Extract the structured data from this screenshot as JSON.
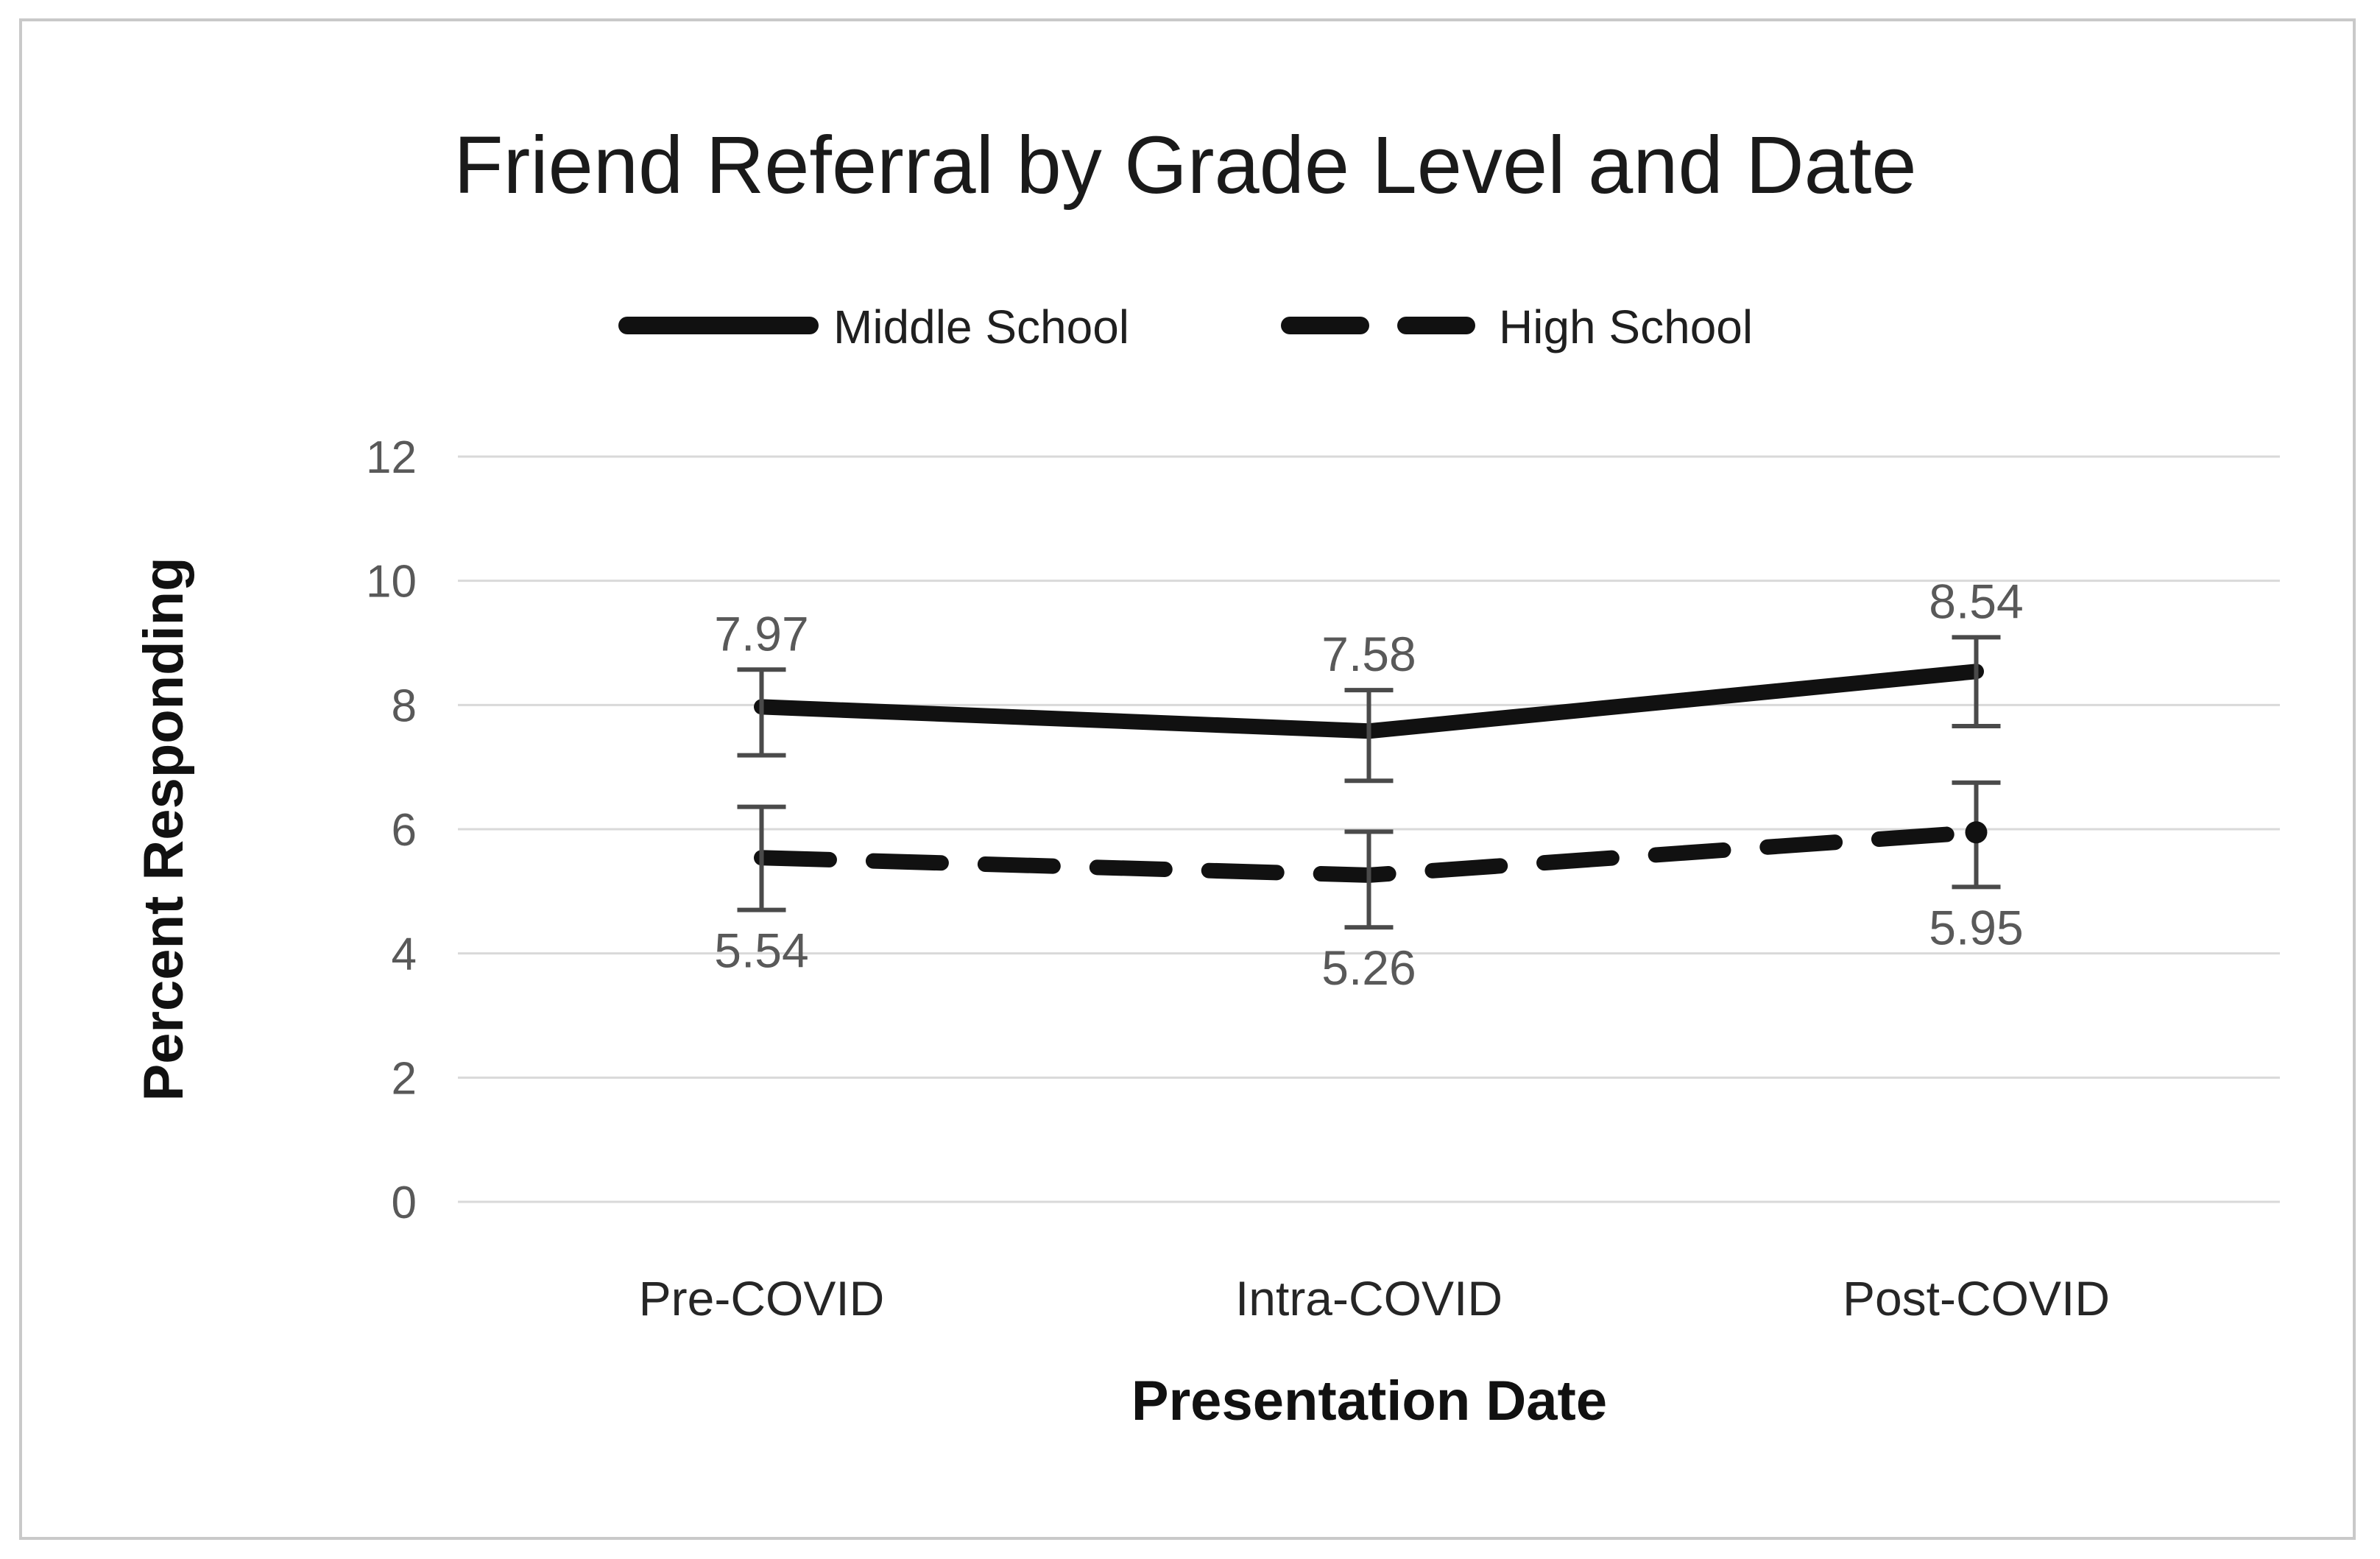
{
  "chart_data": {
    "type": "line",
    "title": "Friend Referral by Grade Level and Date",
    "xlabel": "Presentation Date",
    "ylabel": "Percent Responding",
    "categories": [
      "Pre-COVID",
      "Intra-COVID",
      "Post-COVID"
    ],
    "series": [
      {
        "name": "Middle School",
        "line_style": "solid",
        "values": [
          7.97,
          7.58,
          8.54
        ],
        "error_plus": [
          0.6,
          0.66,
          0.55
        ],
        "error_minus": [
          0.78,
          0.8,
          0.88
        ],
        "data_labels": [
          "7.97",
          "7.58",
          "8.54"
        ],
        "label_side": "above",
        "end_marker": false
      },
      {
        "name": "High School",
        "line_style": "dashed",
        "values": [
          5.54,
          5.26,
          5.95
        ],
        "error_plus": [
          0.82,
          0.7,
          0.8
        ],
        "error_minus": [
          0.84,
          0.84,
          0.88
        ],
        "data_labels": [
          "5.54",
          "5.26",
          "5.95"
        ],
        "label_side": "below",
        "end_marker": true
      }
    ],
    "ylim": [
      0,
      12
    ],
    "ytick_step": 2,
    "ytick_labels": [
      "0",
      "2",
      "4",
      "6",
      "8",
      "10",
      "12"
    ],
    "grid": true,
    "legend_position": "top-center"
  },
  "colors": {
    "background": "#ffffff",
    "frame_border": "#c9c9c9",
    "gridline": "#d9d9d9",
    "series_line": "#111111",
    "error_bar": "#4a4a4a",
    "tick_label": "#595959",
    "category_label": "#262626",
    "title_text": "#1a1a1a"
  }
}
